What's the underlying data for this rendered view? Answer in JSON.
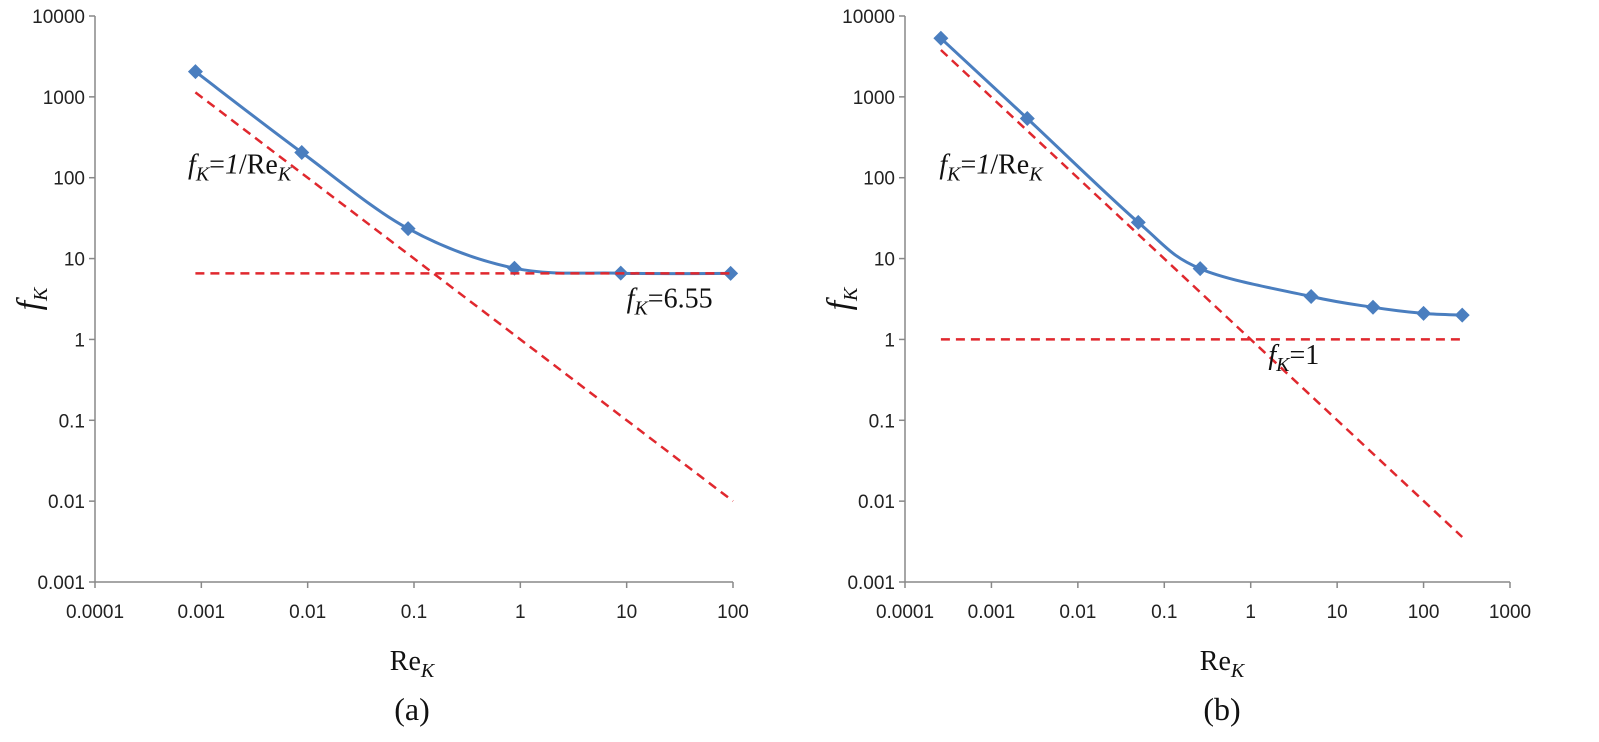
{
  "chart_data": [
    {
      "type": "line",
      "panel_label": "(a)",
      "xscale": "log",
      "yscale": "log",
      "xlim": [
        0.0001,
        100
      ],
      "ylim": [
        0.001,
        10000
      ],
      "xticks": [
        "0.0001",
        "0.001",
        "0.01",
        "0.1",
        "1",
        "10",
        "100"
      ],
      "yticks": [
        "0.001",
        "0.01",
        "0.1",
        "1",
        "10",
        "100",
        "1000",
        "10000"
      ],
      "xlabel_base": "Re",
      "xlabel_sub": "K",
      "ylabel_base": "f",
      "ylabel_sub": "K",
      "series": [
        {
          "name": "fK",
          "style": "solid",
          "color": "#4a7ebf",
          "marker": "diamond",
          "x": [
            0.00088,
            0.0088,
            0.088,
            0.88,
            8.8,
            95
          ],
          "y": [
            2050,
            205,
            23.5,
            7.6,
            6.6,
            6.55
          ]
        },
        {
          "name": "fK=1/ReK",
          "style": "dashed",
          "color": "#e0282e",
          "x": [
            0.00088,
            100
          ],
          "y": [
            1136,
            0.01
          ]
        },
        {
          "name": "fK=6.55",
          "style": "dashed",
          "color": "#e0282e",
          "x": [
            0.00088,
            100
          ],
          "y": [
            6.55,
            6.55
          ]
        }
      ],
      "annotations": [
        {
          "text_f": "f",
          "text_sub": "K",
          "text_eq": "=",
          "text_mid": "1",
          "text_rest": "/Re",
          "text_sub2": "K",
          "x": 0.00075,
          "y": 112
        },
        {
          "text_f": "f",
          "text_sub": "K",
          "text_eq": "=6.55",
          "text_mid": "",
          "text_rest": "",
          "text_sub2": "",
          "x": 10,
          "y": 2.5
        }
      ]
    },
    {
      "type": "line",
      "panel_label": "(b)",
      "xscale": "log",
      "yscale": "log",
      "xlim": [
        0.0001,
        1000
      ],
      "ylim": [
        0.001,
        10000
      ],
      "xticks": [
        "0.0001",
        "0.001",
        "0.01",
        "0.1",
        "1",
        "10",
        "100",
        "1000"
      ],
      "yticks": [
        "0.001",
        "0.01",
        "0.1",
        "1",
        "10",
        "100",
        "1000",
        "10000"
      ],
      "xlabel_base": "Re",
      "xlabel_sub": "K",
      "ylabel_base": "f",
      "ylabel_sub": "K",
      "series": [
        {
          "name": "fK",
          "style": "solid",
          "color": "#4a7ebf",
          "marker": "diamond",
          "x": [
            0.00026,
            0.0026,
            0.05,
            0.26,
            5,
            26,
            100,
            280
          ],
          "y": [
            5300,
            540,
            28,
            7.5,
            3.4,
            2.5,
            2.1,
            2.0
          ]
        },
        {
          "name": "fK=1/ReK",
          "style": "dashed",
          "color": "#e0282e",
          "x": [
            0.00026,
            280
          ],
          "y": [
            3800,
            0.0036
          ]
        },
        {
          "name": "fK=1",
          "style": "dashed",
          "color": "#e0282e",
          "x": [
            0.00026,
            280
          ],
          "y": [
            1,
            1
          ]
        }
      ],
      "annotations": [
        {
          "text_f": "f",
          "text_sub": "K",
          "text_eq": "=",
          "text_mid": "1",
          "text_rest": "/Re",
          "text_sub2": "K",
          "x": 0.00025,
          "y": 112
        },
        {
          "text_f": "f",
          "text_sub": "K",
          "text_eq": "=1",
          "text_mid": "",
          "text_rest": "",
          "text_sub2": "",
          "x": 1.6,
          "y": 0.5
        }
      ]
    }
  ]
}
